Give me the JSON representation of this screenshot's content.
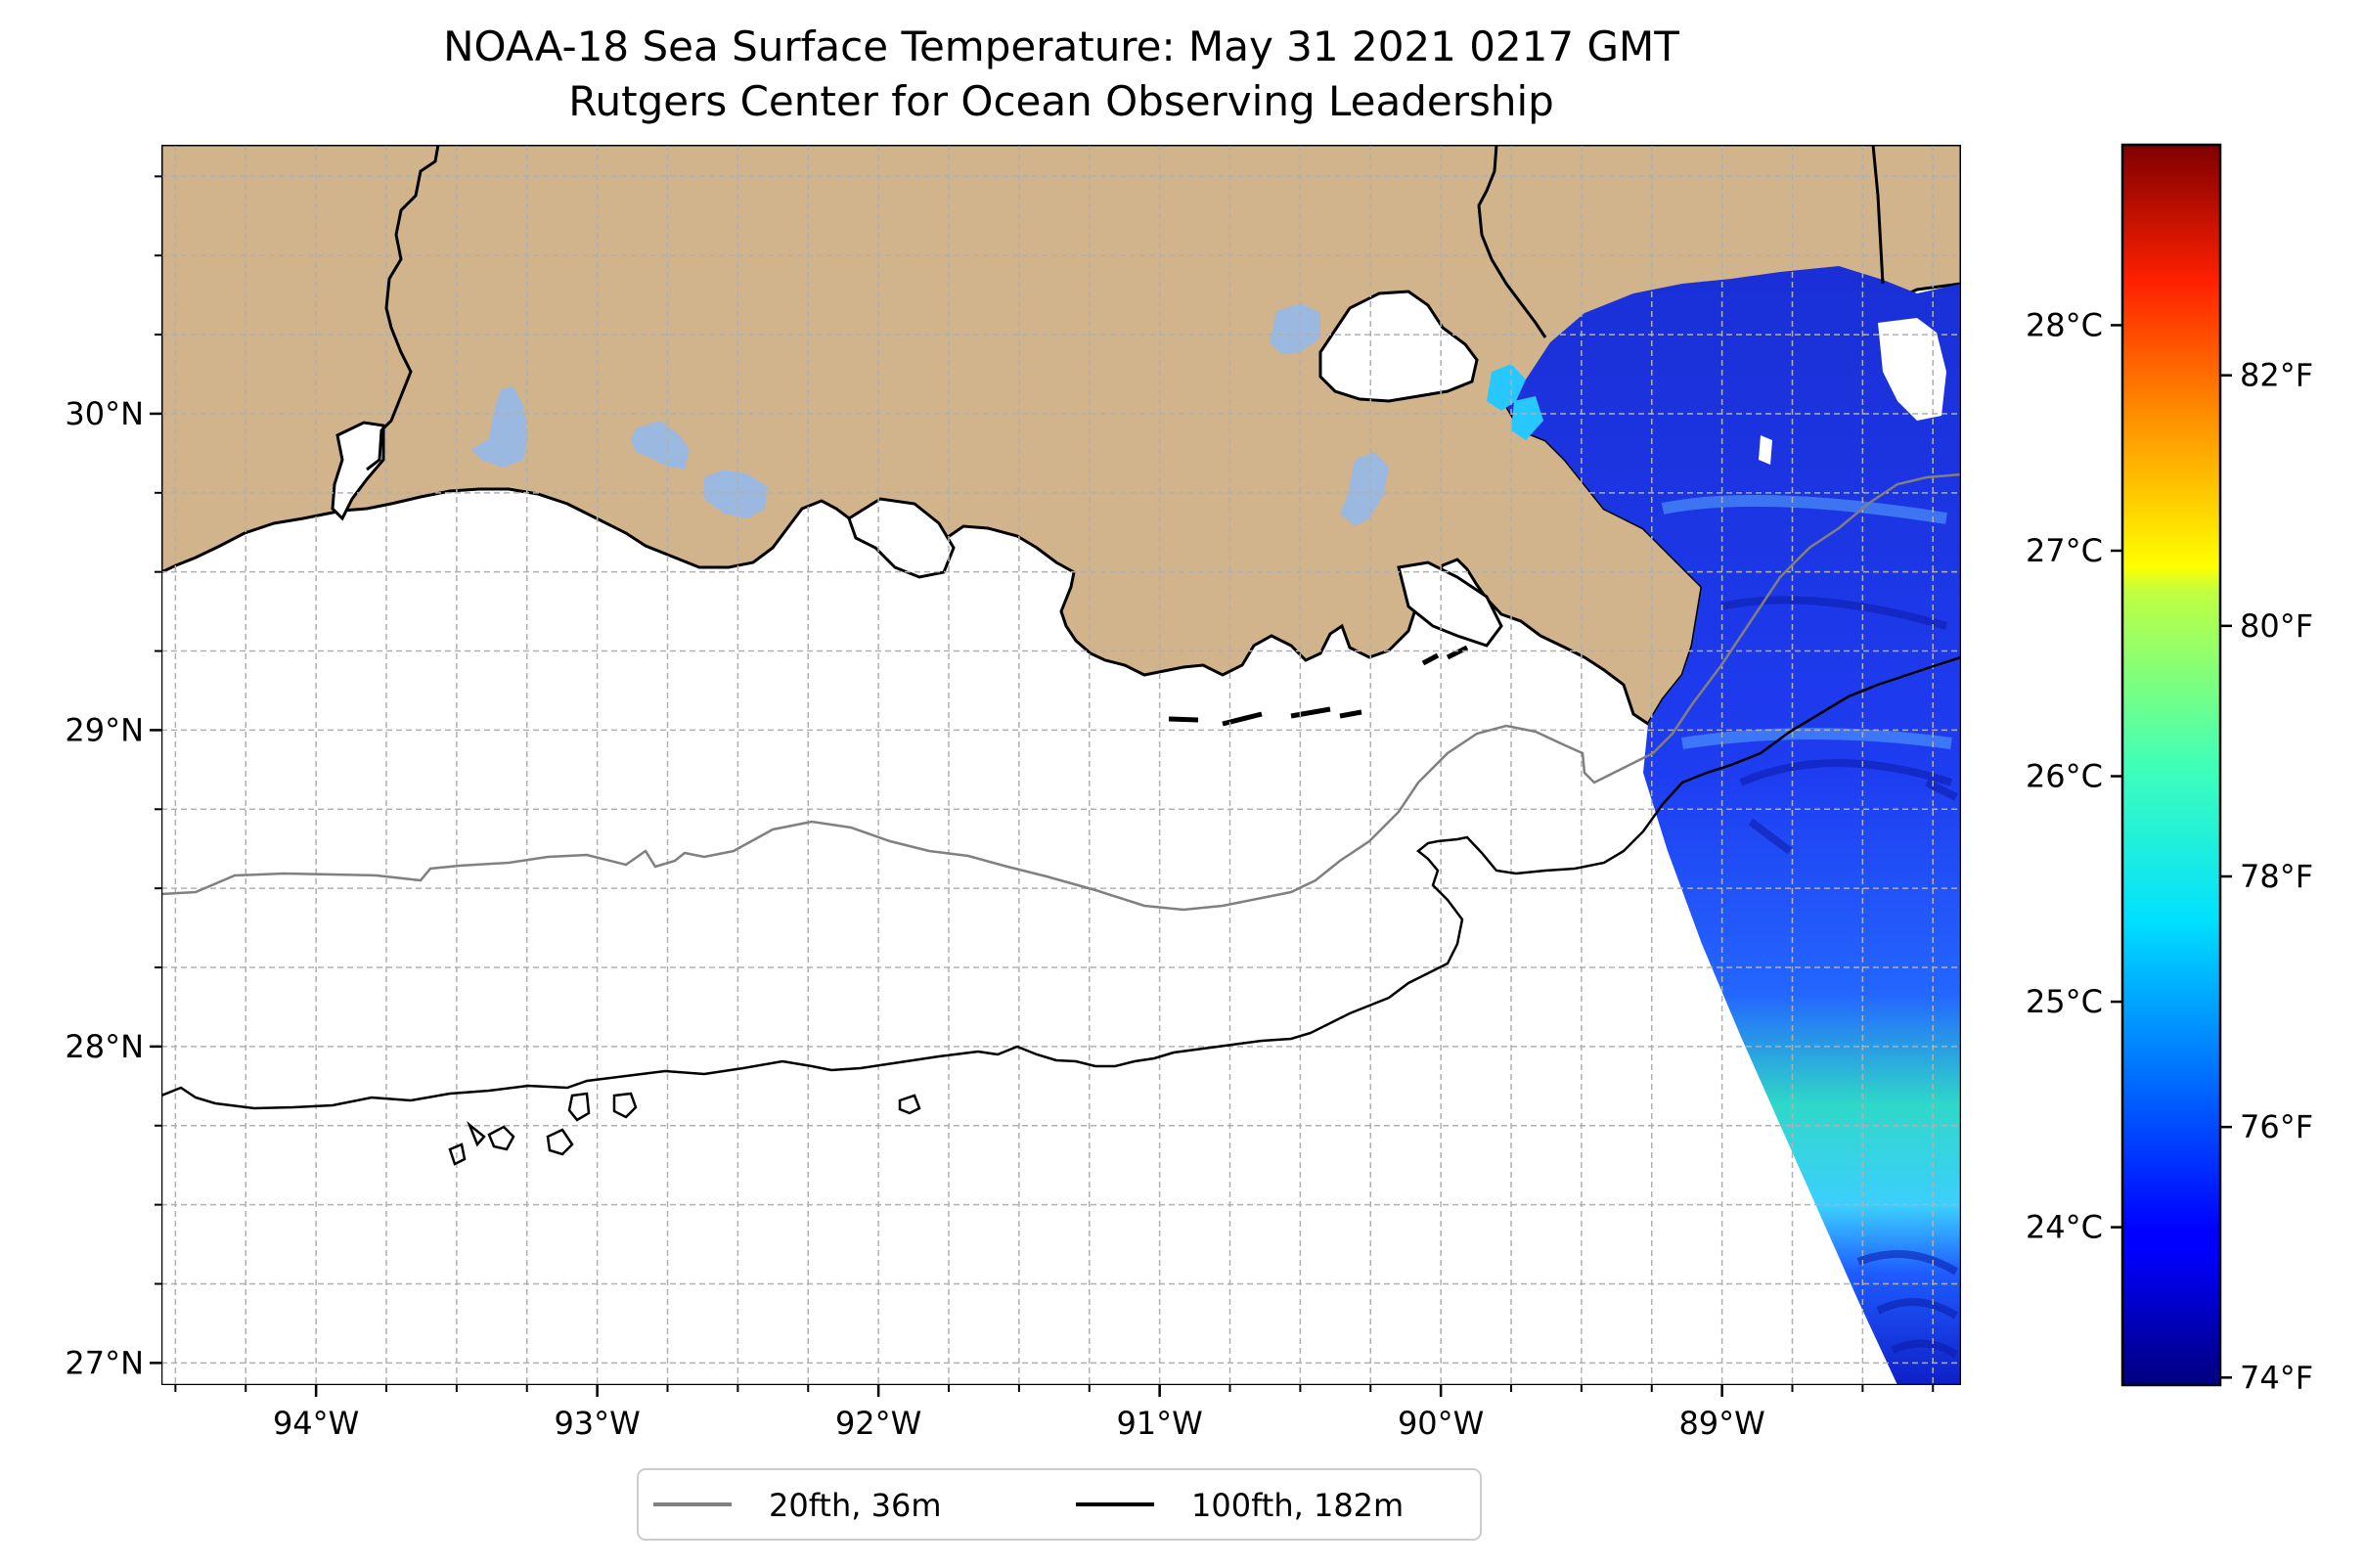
{
  "title": {
    "line1": "NOAA-18 Sea Surface Temperature: May 31 2021 0217 GMT",
    "line2": "Rutgers Center for Ocean Observing Leadership"
  },
  "map": {
    "lon_range": [
      -94.55,
      -88.15
    ],
    "lat_range": [
      26.93,
      30.85
    ],
    "lon_ticks": [
      {
        "value": -94,
        "label": "94°W"
      },
      {
        "value": -93,
        "label": "93°W"
      },
      {
        "value": -92,
        "label": "92°W"
      },
      {
        "value": -91,
        "label": "91°W"
      },
      {
        "value": -90,
        "label": "90°W"
      },
      {
        "value": -89,
        "label": "89°W"
      }
    ],
    "lat_ticks": [
      {
        "value": 27,
        "label": "27°N"
      },
      {
        "value": 28,
        "label": "28°N"
      },
      {
        "value": 29,
        "label": "29°N"
      },
      {
        "value": 30,
        "label": "30°N"
      }
    ],
    "gridlines": true,
    "land_color": "#d2b48c",
    "water_body_color": "#9bb8e0"
  },
  "colorbar": {
    "colormap": "jet",
    "range_c": [
      23.3,
      28.8
    ],
    "celsius_ticks": [
      {
        "value": 24,
        "label": "24°C"
      },
      {
        "value": 25,
        "label": "25°C"
      },
      {
        "value": 26,
        "label": "26°C"
      },
      {
        "value": 27,
        "label": "27°C"
      },
      {
        "value": 28,
        "label": "28°C"
      }
    ],
    "fahrenheit_ticks": [
      {
        "value": 74,
        "label": "74°F"
      },
      {
        "value": 76,
        "label": "76°F"
      },
      {
        "value": 78,
        "label": "78°F"
      },
      {
        "value": 80,
        "label": "80°F"
      },
      {
        "value": 82,
        "label": "82°F"
      }
    ]
  },
  "legend": {
    "items": [
      {
        "label": "20fth, 36m",
        "color": "#808080"
      },
      {
        "label": "100fth, 182m",
        "color": "#000000"
      }
    ],
    "location": "bottom-center"
  }
}
